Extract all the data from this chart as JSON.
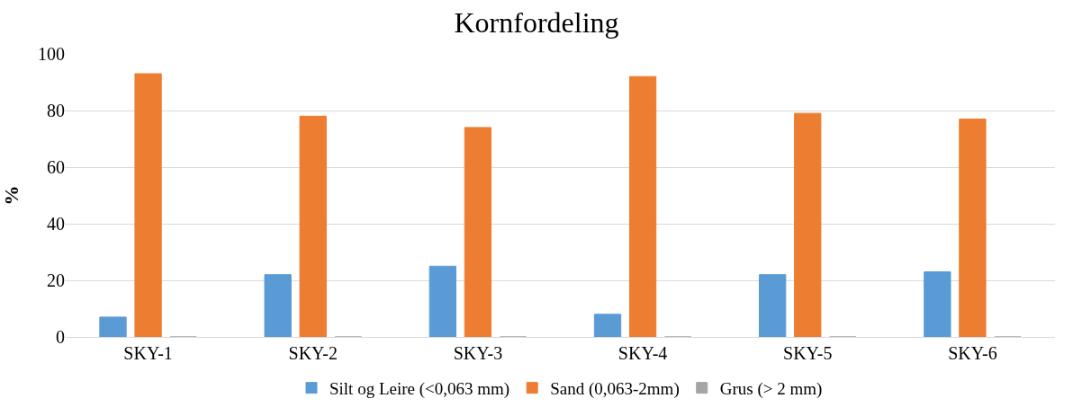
{
  "chart_data": {
    "type": "bar",
    "title": "Kornfordeling",
    "ylabel": "%",
    "categories": [
      "SKY-1",
      "SKY-2",
      "SKY-3",
      "SKY-4",
      "SKY-5",
      "SKY-6"
    ],
    "series": [
      {
        "name": "Silt og Leire (<0,063 mm)",
        "color": "#5b9bd5",
        "values": [
          7,
          22,
          25,
          8,
          22,
          23
        ]
      },
      {
        "name": "Sand (0,063-2mm)",
        "color": "#ed7d31",
        "values": [
          93,
          78,
          74,
          92,
          79,
          77
        ]
      },
      {
        "name": "Grus (> 2 mm)",
        "color": "#a5a5a5",
        "values": [
          0,
          0,
          0,
          0,
          0,
          0
        ]
      }
    ],
    "ylim": [
      0,
      100
    ],
    "yticks": [
      0,
      20,
      40,
      60,
      80,
      100
    ],
    "grid": "y",
    "legend": "bottom"
  }
}
